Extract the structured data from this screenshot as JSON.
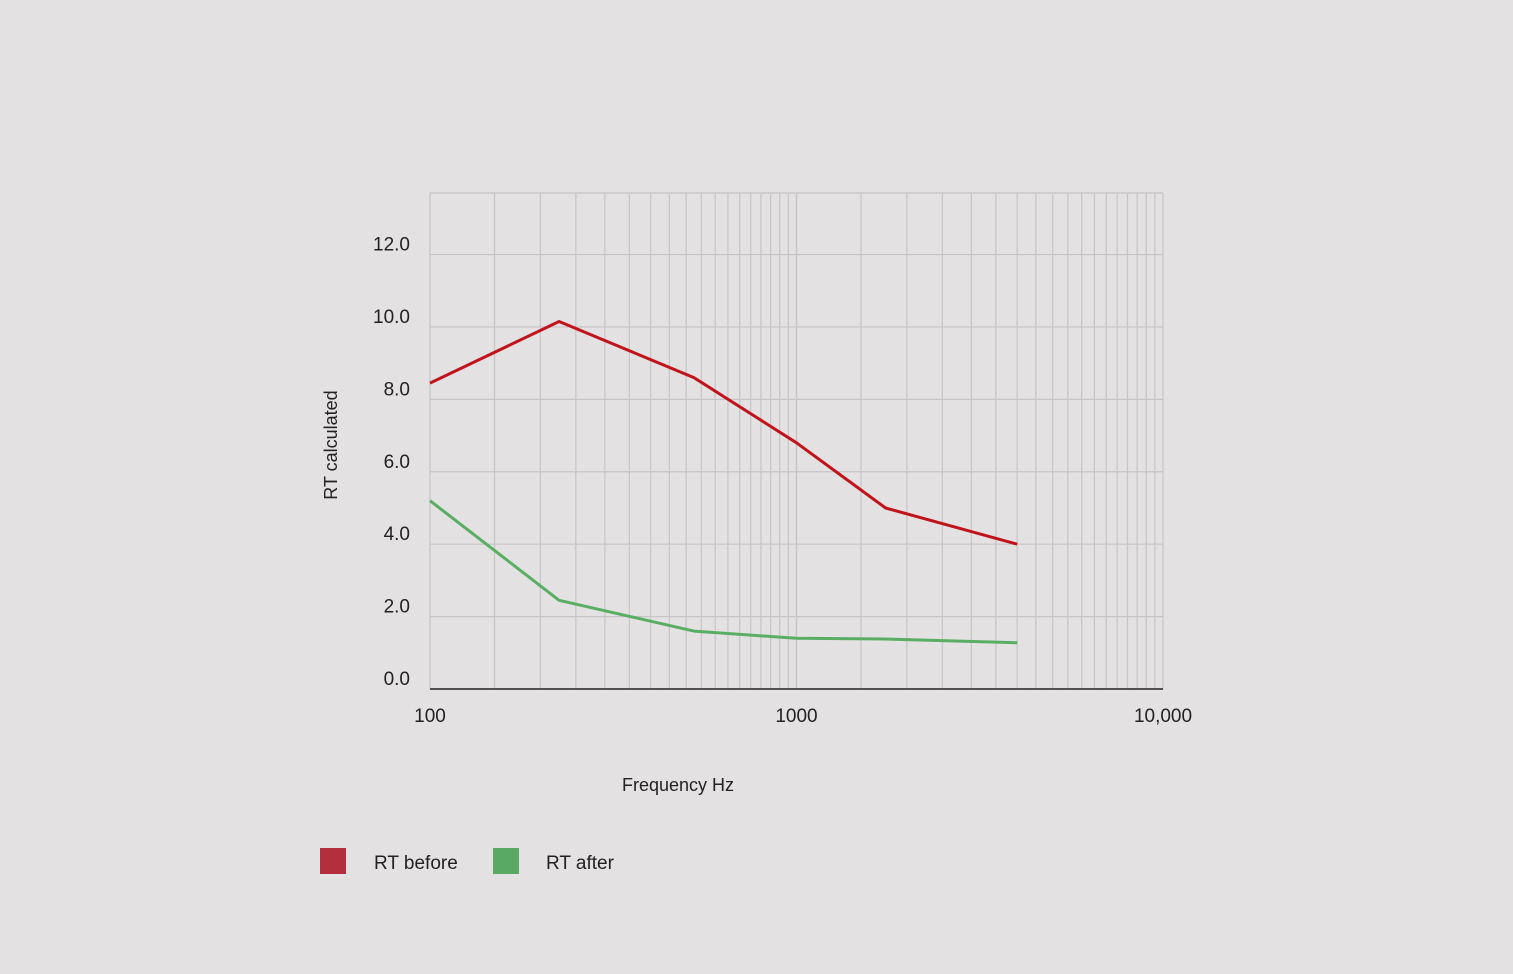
{
  "chart_data": {
    "type": "line",
    "xlabel": "Frequency Hz",
    "ylabel": "RT calculated",
    "xscale": "log",
    "xlim": [
      100,
      10000
    ],
    "ylim": [
      0,
      13.7
    ],
    "grid": true,
    "x_ticks": [
      100,
      1000,
      10000
    ],
    "x_tick_labels": [
      "100",
      "1000",
      "10,000"
    ],
    "y_ticks": [
      0,
      2,
      4,
      6,
      8,
      10,
      12
    ],
    "y_tick_labels": [
      "0.0",
      "2.0",
      "4.0",
      "6.0",
      "8.0",
      "10.0",
      "12.0"
    ],
    "legend_position": "bottom-left",
    "series": [
      {
        "name": "RT before",
        "color": "#c0141c",
        "legend_color": "#b32f3e",
        "x": [
          100,
          225,
          525,
          1000,
          1750,
          4000
        ],
        "y": [
          8.45,
          10.15,
          8.6,
          6.8,
          5.0,
          4.0
        ]
      },
      {
        "name": "RT after",
        "color": "#5aae64",
        "legend_color": "#59a965",
        "x": [
          100,
          225,
          525,
          1000,
          1750,
          4000
        ],
        "y": [
          5.2,
          2.45,
          1.6,
          1.4,
          1.38,
          1.28
        ]
      }
    ]
  }
}
